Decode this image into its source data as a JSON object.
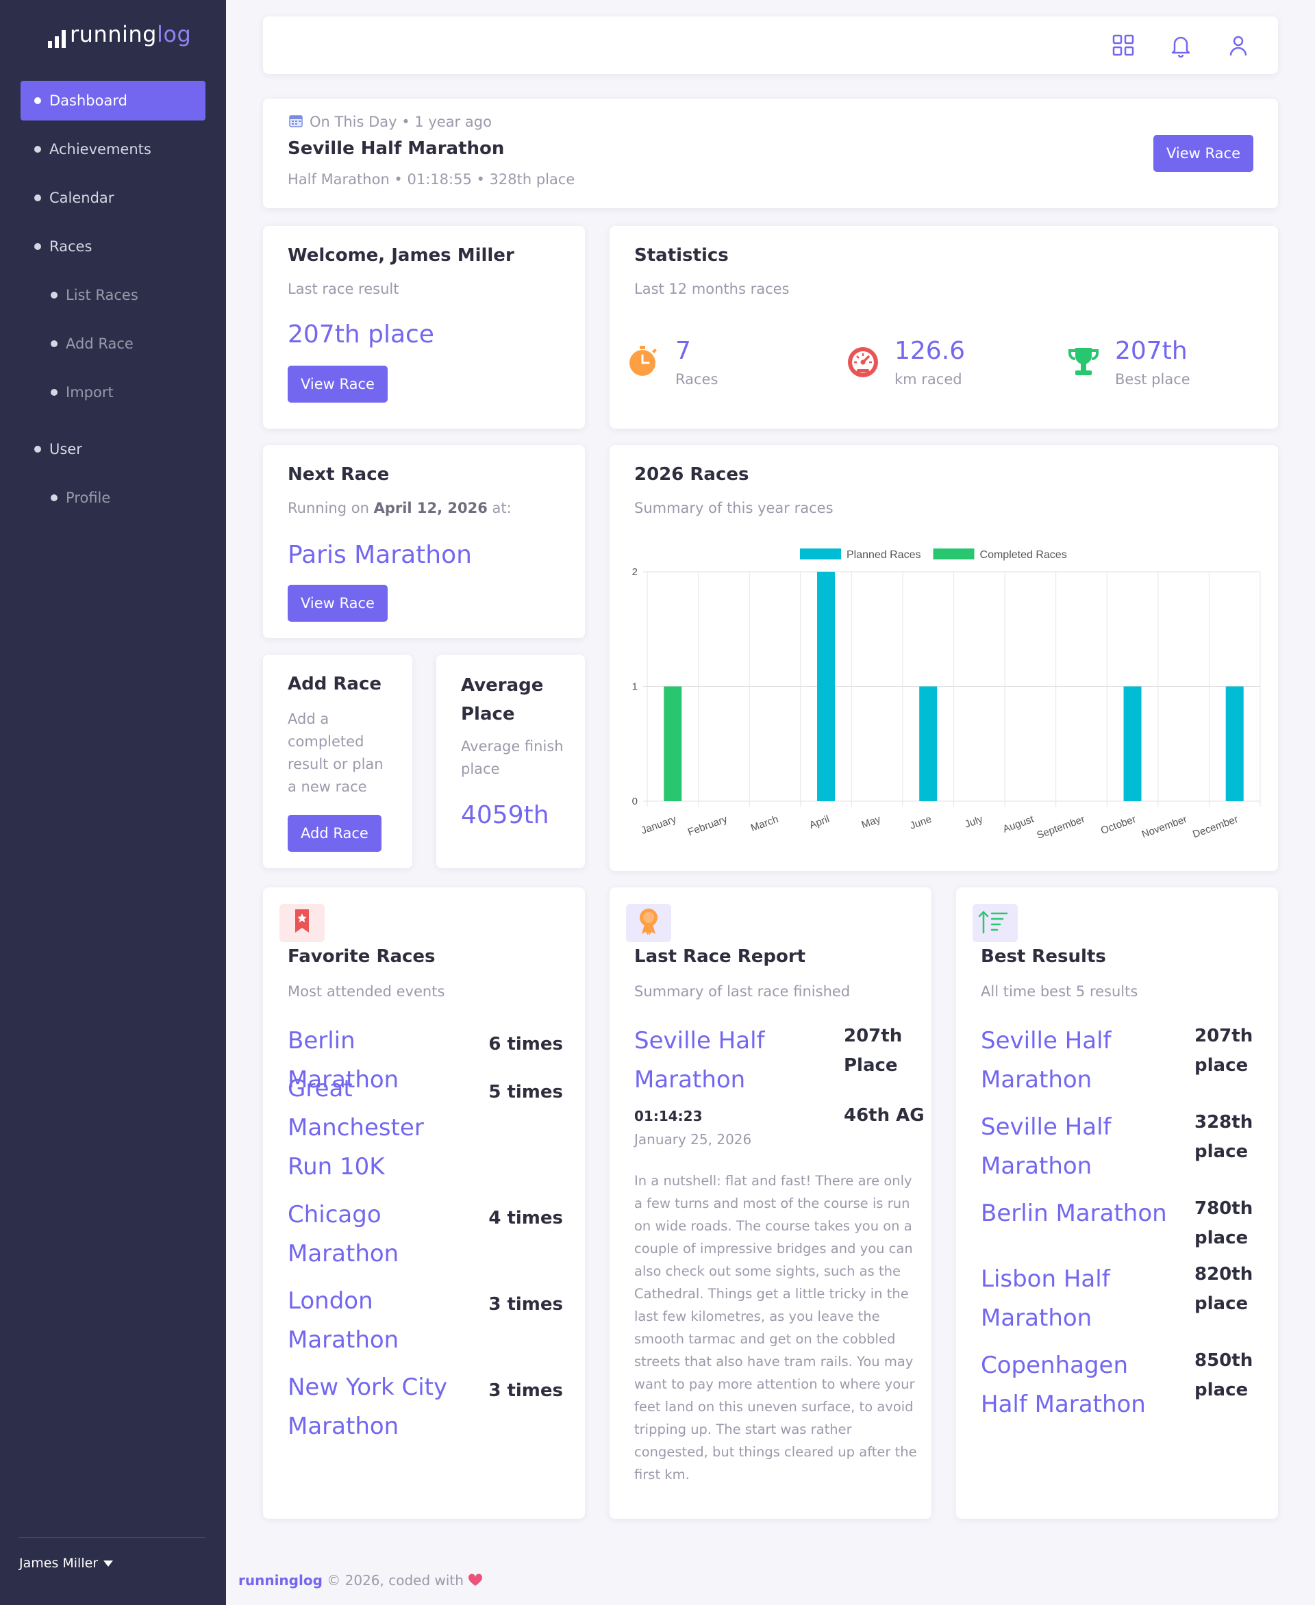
{
  "app": {
    "logo_running": "running",
    "logo_log": "log",
    "user_name": "James Miller"
  },
  "sidebar": {
    "items": [
      {
        "label": "Dashboard",
        "active": true,
        "level": 0
      },
      {
        "label": "Achievements",
        "level": 0
      },
      {
        "label": "Calendar",
        "level": 0
      },
      {
        "label": "Races",
        "level": 0
      },
      {
        "label": "List Races",
        "level": 1
      },
      {
        "label": "Add Race",
        "level": 1
      },
      {
        "label": "Import",
        "level": 1
      },
      {
        "label": "User",
        "level": 0
      },
      {
        "label": "Profile",
        "level": 1
      }
    ]
  },
  "topbar": {
    "icons": [
      "apps-grid-icon",
      "bell-icon",
      "user-icon"
    ]
  },
  "on_this_day": {
    "tag": "On This Day • 1 year ago",
    "title": "Seville Half Marathon",
    "detail": "Half Marathon • 01:18:55 • 328th place",
    "button": "View Race"
  },
  "welcome": {
    "title": "Welcome, James Miller",
    "subtitle": "Last race result",
    "result": "207th place",
    "button": "View Race"
  },
  "statistics": {
    "title": "Statistics",
    "subtitle": "Last 12 months races",
    "items": [
      {
        "value": "7",
        "label": "Races",
        "icon": "stopwatch-icon",
        "color": "#ff9f43"
      },
      {
        "value": "126.6",
        "label": "km raced",
        "icon": "speedometer-icon",
        "color": "#ea5455"
      },
      {
        "value": "207th",
        "label": "Best place",
        "icon": "trophy-icon",
        "color": "#28c76f"
      }
    ]
  },
  "next_race": {
    "title": "Next Race",
    "subtitle_prefix": "Running on ",
    "date": "April 12, 2026",
    "subtitle_suffix": " at:",
    "race": "Paris Marathon",
    "button": "View Race"
  },
  "add_race": {
    "title": "Add Race",
    "text": "Add a completed result or plan a new race",
    "button": "Add Race"
  },
  "average_place": {
    "title": "Average Place",
    "text": "Average finish place",
    "value": "4059th"
  },
  "races_chart": {
    "title": "2026 Races",
    "subtitle": "Summary of this year races"
  },
  "chart_data": {
    "type": "bar",
    "categories": [
      "January",
      "February",
      "March",
      "April",
      "May",
      "June",
      "July",
      "August",
      "September",
      "October",
      "November",
      "December"
    ],
    "series": [
      {
        "name": "Planned Races",
        "color": "#00bcd4",
        "values": [
          0,
          0,
          0,
          2,
          0,
          1,
          0,
          0,
          0,
          1,
          0,
          1
        ]
      },
      {
        "name": "Completed Races",
        "color": "#28c76f",
        "values": [
          1,
          0,
          0,
          0,
          0,
          0,
          0,
          0,
          0,
          0,
          0,
          0
        ]
      }
    ],
    "ylim": [
      0,
      2
    ],
    "yticks": [
      "0",
      "1",
      "2"
    ],
    "legend": "top"
  },
  "favorite_races": {
    "title": "Favorite Races",
    "subtitle": "Most attended events",
    "rows": [
      {
        "name": "Berlin Marathon",
        "count": "6 times"
      },
      {
        "name": "Great Manchester Run 10K",
        "count": "5 times"
      },
      {
        "name": "Chicago Marathon",
        "count": "4 times"
      },
      {
        "name": "London Marathon",
        "count": "3 times"
      },
      {
        "name": "New York City Marathon",
        "count": "3 times"
      }
    ]
  },
  "last_report": {
    "title": "Last Race Report",
    "subtitle": "Summary of last race finished",
    "race": "Seville Half Marathon",
    "place": "207th Place",
    "time": "01:14:23",
    "ag": "46th AG",
    "date": "January 25, 2026",
    "text": "In a nutshell: flat and fast! There are only a few turns and most of the course is run on wide roads. The course takes you on a couple of impressive bridges and you can also check out some sights, such as the Cathedral. Things get a little tricky in the last few kilometres, as you leave the smooth tarmac and get on the cobbled streets that also have tram rails. You may want to pay more attention to where your feet land on this uneven surface, to avoid tripping up. The start was rather congested, but things cleared up after the first km."
  },
  "best_results": {
    "title": "Best Results",
    "subtitle": "All time best 5 results",
    "rows": [
      {
        "name": "Seville Half Marathon",
        "place": "207th place"
      },
      {
        "name": "Seville Half Marathon",
        "place": "328th place"
      },
      {
        "name": "Berlin Marathon",
        "place": "780th place"
      },
      {
        "name": "Lisbon Half Marathon",
        "place": "820th place"
      },
      {
        "name": "Copenhagen Half Marathon",
        "place": "850th place"
      }
    ]
  },
  "footer": {
    "brand": "runninglog",
    "text": " © 2026, coded with "
  }
}
